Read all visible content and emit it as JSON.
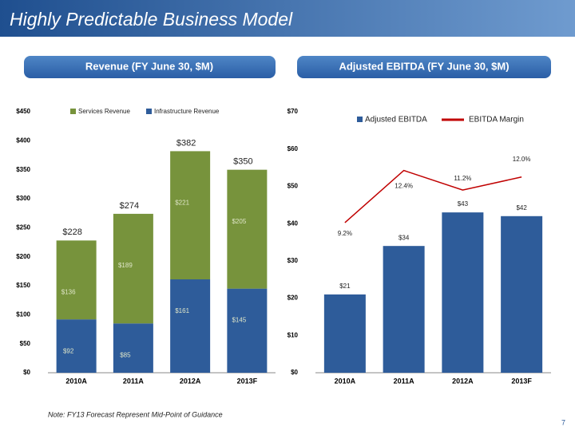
{
  "slide": {
    "title": "Highly Predictable Business Model",
    "note": "Note:  FY13 Forecast Represent Mid-Point of Guidance",
    "page": "7"
  },
  "chart_data": [
    {
      "type": "bar",
      "stacked": true,
      "title": "Revenue (FY June 30, $M)",
      "categories": [
        "2010A",
        "2011A",
        "2012A",
        "2013F"
      ],
      "series": [
        {
          "name": "Infrastructure Revenue",
          "color": "#2e5c9a",
          "values": [
            92,
            85,
            161,
            145
          ],
          "value_labels": [
            "$92",
            "$85",
            "$161",
            "$145"
          ]
        },
        {
          "name": "Services Revenue",
          "color": "#77933c",
          "values": [
            136,
            189,
            221,
            205
          ],
          "value_labels": [
            "$136",
            "$189",
            "$221",
            "$205"
          ]
        }
      ],
      "totals": [
        228,
        274,
        382,
        350
      ],
      "total_labels": [
        "$228",
        "$274",
        "$382",
        "$350"
      ],
      "ylim": [
        0,
        450
      ],
      "yticks": [
        {
          "value": 0,
          "label": "$0"
        },
        {
          "value": 50,
          "label": "$50"
        },
        {
          "value": 100,
          "label": "$100"
        },
        {
          "value": 150,
          "label": "$150"
        },
        {
          "value": 200,
          "label": "$200"
        },
        {
          "value": 250,
          "label": "$250"
        },
        {
          "value": 300,
          "label": "$300"
        },
        {
          "value": 350,
          "label": "$350"
        },
        {
          "value": 400,
          "label": "$400"
        },
        {
          "value": 450,
          "label": "$450"
        }
      ],
      "grid": false
    },
    {
      "type": "bar",
      "stacked": false,
      "title": "Adjusted EBITDA (FY June 30, $M)",
      "categories": [
        "2010A",
        "2011A",
        "2012A",
        "2013F"
      ],
      "series": [
        {
          "name": "Adjusted EBITDA",
          "color": "#2e5c9a",
          "values": [
            21,
            34,
            43,
            42
          ],
          "value_labels": [
            "$21",
            "$34",
            "$43",
            "$42"
          ]
        },
        {
          "name": "EBITDA Margin",
          "type": "line",
          "axis": "y2",
          "color": "#c00000",
          "values": [
            9.2,
            12.4,
            11.2,
            12.0
          ],
          "value_labels": [
            "9.2%",
            "12.4%",
            "11.2%",
            "12.0%"
          ]
        }
      ],
      "ylim": [
        0,
        70
      ],
      "yticks": [
        {
          "value": 0,
          "label": "$0"
        },
        {
          "value": 10,
          "label": "$10"
        },
        {
          "value": 20,
          "label": "$20"
        },
        {
          "value": 30,
          "label": "$30"
        },
        {
          "value": 40,
          "label": "$40"
        },
        {
          "value": 50,
          "label": "$50"
        },
        {
          "value": 60,
          "label": "$60"
        },
        {
          "value": 70,
          "label": "$70"
        }
      ],
      "y2lim": [
        0,
        16
      ],
      "grid": false
    }
  ]
}
